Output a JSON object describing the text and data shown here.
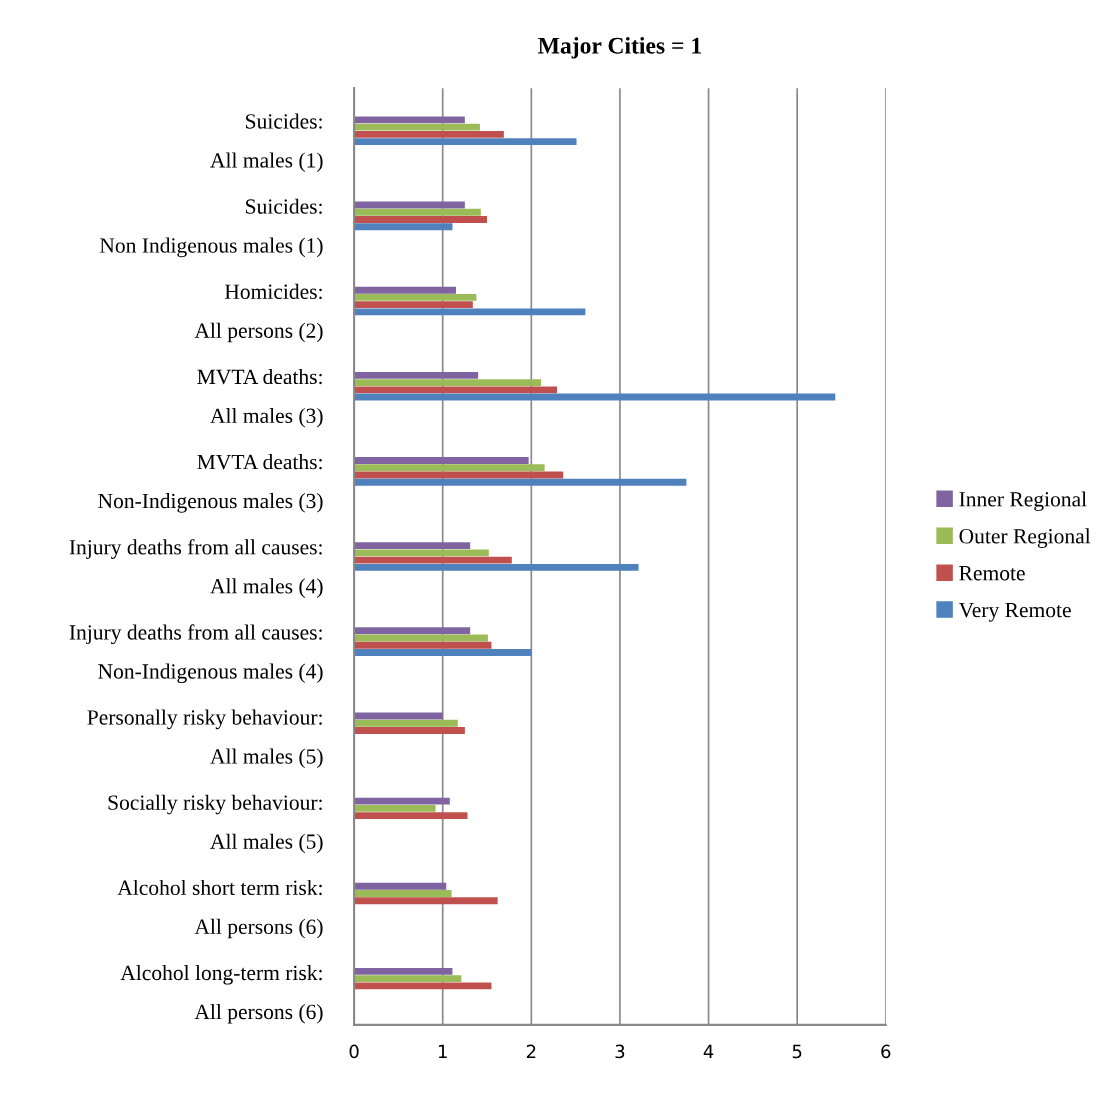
{
  "chart_data": {
    "type": "bar",
    "orientation": "horizontal",
    "title": "Major Cities = 1",
    "categories": [
      "Suicides:\nAll males (1)",
      "Suicides:\nNon Indigenous males (1)",
      "Homicides:\nAll persons (2)",
      "MVTA deaths:\nAll males (3)",
      "MVTA deaths:\nNon-Indigenous males (3)",
      "Injury deaths from all causes:\nAll males (4)",
      "Injury deaths from all causes:\nNon-Indigenous males (4)",
      "Personally risky behaviour:\nAll males (5)",
      "Socially risky behaviour:\nAll males (5)",
      "Alcohol short term risk:\nAll persons (6)",
      "Alcohol long-term risk:\nAll persons (6)"
    ],
    "series": [
      {
        "name": "Inner Regional",
        "color": "#8064a2",
        "values": [
          1.25,
          1.25,
          1.15,
          1.4,
          1.97,
          1.31,
          1.31,
          1.0,
          1.08,
          1.04,
          1.11
        ]
      },
      {
        "name": "Outer Regional",
        "color": "#9bbb59",
        "values": [
          1.42,
          1.43,
          1.38,
          2.11,
          2.15,
          1.52,
          1.51,
          1.17,
          0.92,
          1.1,
          1.21
        ]
      },
      {
        "name": "Remote",
        "color": "#c0504d",
        "values": [
          1.69,
          1.5,
          1.34,
          2.29,
          2.36,
          1.78,
          1.55,
          1.25,
          1.28,
          1.62,
          1.55
        ]
      },
      {
        "name": "Very Remote",
        "color": "#4f81bd",
        "values": [
          2.51,
          1.11,
          2.61,
          5.43,
          3.75,
          3.21,
          2.0,
          null,
          null,
          null,
          null
        ]
      }
    ],
    "xlim": [
      0,
      6
    ],
    "xticks": [
      0,
      1,
      2,
      3,
      4,
      5,
      6
    ],
    "grid": "x",
    "legend": "right"
  }
}
